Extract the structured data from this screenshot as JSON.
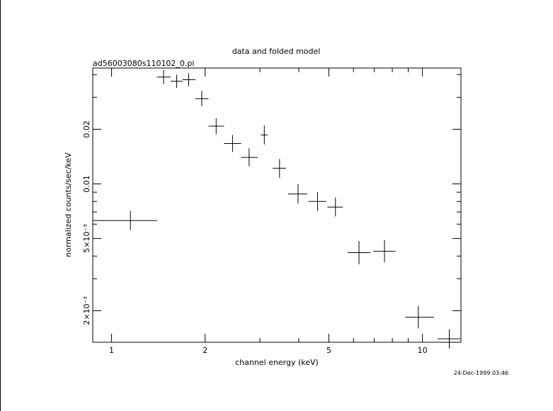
{
  "chart_data": {
    "type": "scatter",
    "title": "data and folded model",
    "subtitle": "ad56003080s110102_0.pi",
    "xlabel": "channel energy (keV)",
    "ylabel": "normalized counts/sec/keV",
    "x_scale": "log",
    "y_scale": "log",
    "xlim": [
      0.87,
      13.3
    ],
    "ylim": [
      0.00134,
      0.0435
    ],
    "x_ticks": [
      "1",
      "2",
      "5",
      "10"
    ],
    "y_ticks": [
      "2×10⁻³",
      "5×10⁻³",
      "0.01",
      "0.02"
    ],
    "grid": false,
    "series": [
      {
        "points": [
          {
            "x": 1.15,
            "xlo": 0.87,
            "xhi": 1.4,
            "y": 0.00628,
            "ylo": 0.00555,
            "yhi": 0.0071
          },
          {
            "x": 1.47,
            "xlo": 1.4,
            "xhi": 1.55,
            "y": 0.0388,
            "ylo": 0.0355,
            "yhi": 0.0425
          },
          {
            "x": 1.62,
            "xlo": 1.55,
            "xhi": 1.69,
            "y": 0.0368,
            "ylo": 0.0338,
            "yhi": 0.04
          },
          {
            "x": 1.77,
            "xlo": 1.69,
            "xhi": 1.86,
            "y": 0.0375,
            "ylo": 0.0345,
            "yhi": 0.0407
          },
          {
            "x": 1.95,
            "xlo": 1.86,
            "xhi": 2.05,
            "y": 0.0295,
            "ylo": 0.0268,
            "yhi": 0.0325
          },
          {
            "x": 2.17,
            "xlo": 2.05,
            "xhi": 2.3,
            "y": 0.0208,
            "ylo": 0.0188,
            "yhi": 0.023
          },
          {
            "x": 2.45,
            "xlo": 2.3,
            "xhi": 2.61,
            "y": 0.0167,
            "ylo": 0.015,
            "yhi": 0.0186
          },
          {
            "x": 2.77,
            "xlo": 2.61,
            "xhi": 2.95,
            "y": 0.014,
            "ylo": 0.0125,
            "yhi": 0.0157
          },
          {
            "x": 3.1,
            "xlo": 3.02,
            "xhi": 3.18,
            "y": 0.0186,
            "ylo": 0.0165,
            "yhi": 0.021
          },
          {
            "x": 3.47,
            "xlo": 3.3,
            "xhi": 3.64,
            "y": 0.0122,
            "ylo": 0.0108,
            "yhi": 0.0137
          },
          {
            "x": 3.98,
            "xlo": 3.7,
            "xhi": 4.26,
            "y": 0.0088,
            "ylo": 0.00778,
            "yhi": 0.00997
          },
          {
            "x": 4.6,
            "xlo": 4.3,
            "xhi": 4.9,
            "y": 0.008,
            "ylo": 0.0071,
            "yhi": 0.009
          },
          {
            "x": 5.25,
            "xlo": 4.95,
            "xhi": 5.55,
            "y": 0.00745,
            "ylo": 0.00662,
            "yhi": 0.0084
          },
          {
            "x": 6.25,
            "xlo": 5.75,
            "xhi": 6.8,
            "y": 0.00418,
            "ylo": 0.0036,
            "yhi": 0.00485
          },
          {
            "x": 7.55,
            "xlo": 6.95,
            "xhi": 8.2,
            "y": 0.00425,
            "ylo": 0.0037,
            "yhi": 0.0049
          },
          {
            "x": 9.7,
            "xlo": 8.8,
            "xhi": 10.9,
            "y": 0.00184,
            "ylo": 0.0016,
            "yhi": 0.00212
          },
          {
            "x": 12.2,
            "xlo": 11.2,
            "xhi": 13.3,
            "y": 0.0014,
            "ylo": 0.00124,
            "yhi": 0.00158
          }
        ]
      }
    ]
  },
  "timestamp": "24-Dec-1999 03:46"
}
